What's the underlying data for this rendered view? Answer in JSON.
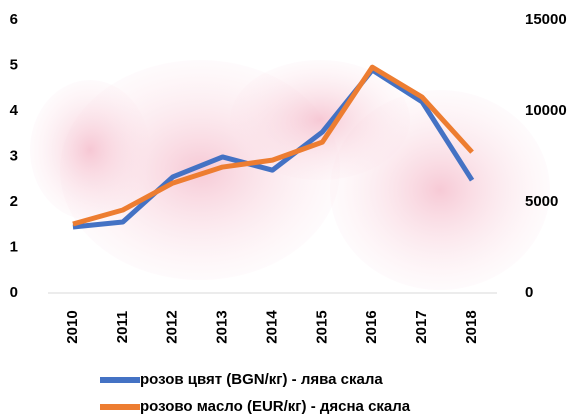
{
  "chart_data": {
    "type": "line",
    "categories": [
      "2010",
      "2011",
      "2012",
      "2013",
      "2014",
      "2015",
      "2016",
      "2017",
      "2018"
    ],
    "series": [
      {
        "name": "розов цвят (BGN/кг) - лява скала",
        "color": "#4472c4",
        "values": [
          1.45,
          1.56,
          2.55,
          2.99,
          2.7,
          3.54,
          4.9,
          4.2,
          2.48
        ]
      },
      {
        "name": "розово масло (EUR/кг) - дясна скала",
        "color": "#ed7d31",
        "axis": "y2",
        "values": [
          3790,
          4560,
          6040,
          6920,
          7300,
          8290,
          12410,
          10760,
          7740
        ]
      }
    ],
    "ylim": [
      0,
      6
    ],
    "yticks": [
      0,
      1,
      2,
      3,
      4,
      5,
      6
    ],
    "y2lim": [
      0,
      15000
    ],
    "y2ticks": [
      0,
      5000,
      10000,
      15000
    ],
    "legend": "bottom"
  }
}
